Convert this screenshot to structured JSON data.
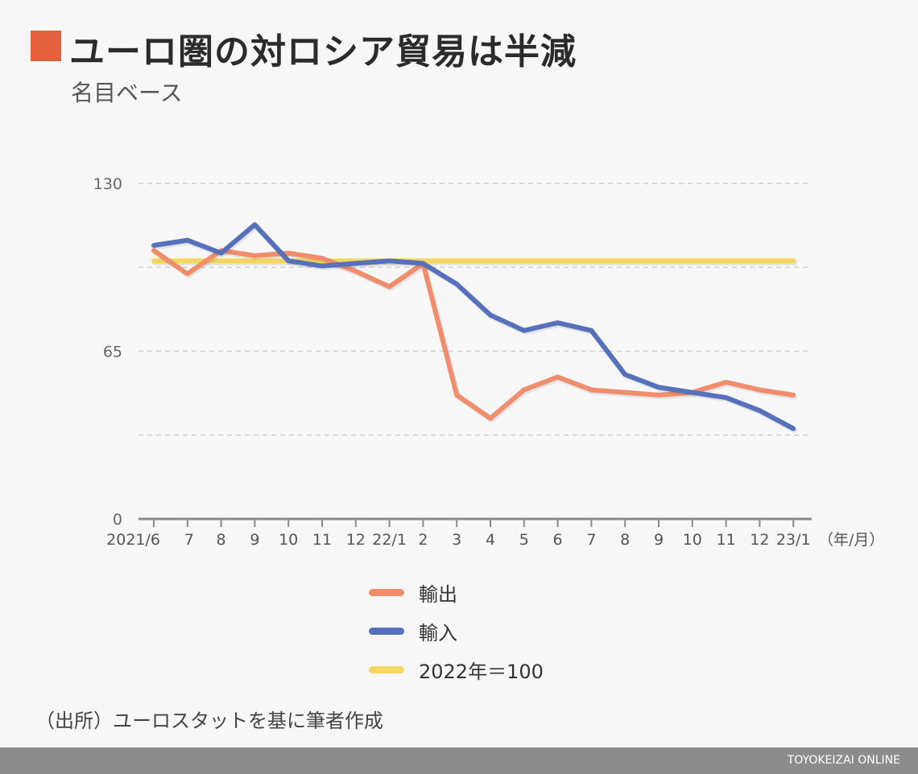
{
  "title": "ユーロ圏の対ロシア貿易は半減",
  "subtitle": "名目ベース",
  "source": "（出所）ユーロスタットを基に筆者作成",
  "brand": "TOYOKEIZAI ONLINE",
  "colors": {
    "title_marker": "#e2613c",
    "export": "#ef8d6c",
    "import": "#5670bc",
    "baseline": "#f4d55e",
    "axis": "#8a8a8a",
    "grid": "#cfcfcf",
    "footer": "#8c8c8c"
  },
  "chart_data": {
    "type": "line",
    "title": "ユーロ圏の対ロシア貿易は半減",
    "subtitle": "名目ベース",
    "xlabel": "（年/月）",
    "ylabel": "",
    "ylim": [
      0,
      130
    ],
    "yticks": [
      0,
      65,
      130
    ],
    "grid": true,
    "categories": [
      "2021/6",
      "7",
      "8",
      "9",
      "10",
      "11",
      "12",
      "22/1",
      "2",
      "3",
      "4",
      "5",
      "6",
      "7",
      "8",
      "9",
      "10",
      "11",
      "12",
      "23/1"
    ],
    "x_tick_labels": [
      "2021/6",
      "7",
      "8",
      "9",
      "10",
      "11",
      "12",
      "22/1",
      "2",
      "3",
      "4",
      "5",
      "6",
      "7",
      "8",
      "9",
      "10",
      "11",
      "12",
      "23/1"
    ],
    "series": [
      {
        "name": "輸出",
        "key": "export",
        "values": [
          104,
          95,
          104,
          102,
          103,
          101,
          96,
          90,
          99,
          48,
          39,
          50,
          55,
          50,
          49,
          48,
          49,
          53,
          50,
          48
        ]
      },
      {
        "name": "輸入",
        "key": "import",
        "values": [
          106,
          108,
          103,
          114,
          100,
          98,
          99,
          100,
          99,
          91,
          79,
          73,
          76,
          73,
          56,
          51,
          49,
          47,
          42,
          35
        ]
      },
      {
        "name": "2022年＝100",
        "key": "baseline",
        "values": [
          100,
          100,
          100,
          100,
          100,
          100,
          100,
          100,
          100,
          100,
          100,
          100,
          100,
          100,
          100,
          100,
          100,
          100,
          100,
          100
        ]
      }
    ]
  },
  "legend": [
    {
      "label": "輸出",
      "key": "export"
    },
    {
      "label": "輸入",
      "key": "import"
    },
    {
      "label": "2022年＝100",
      "key": "baseline"
    }
  ]
}
